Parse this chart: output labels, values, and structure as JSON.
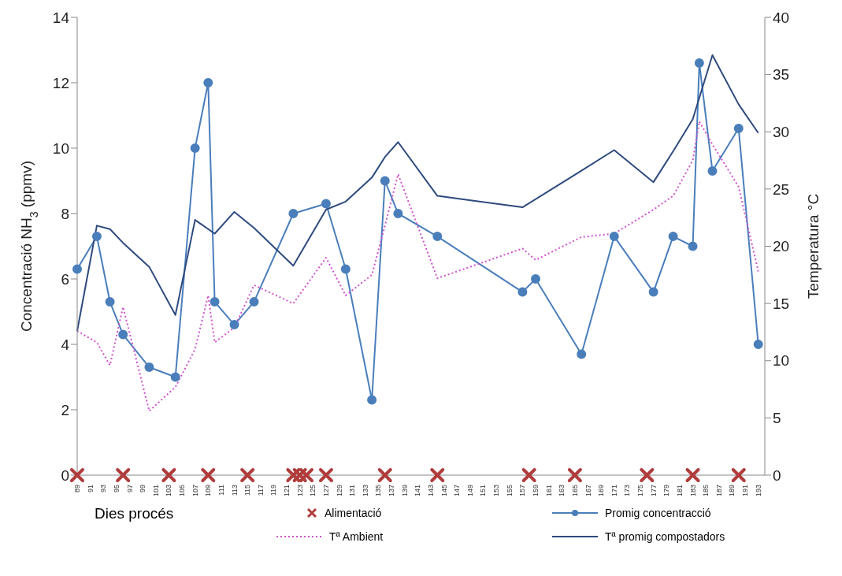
{
  "chart_data": {
    "type": "line",
    "xlabel": "Dies procés",
    "ylabel": "Concentració NH$_{3}$ (ppmv)",
    "y2label": "Temperatura °C",
    "xlim": [
      89,
      194
    ],
    "xticks": [
      89,
      91,
      93,
      95,
      97,
      99,
      101,
      103,
      105,
      107,
      109,
      111,
      113,
      115,
      117,
      119,
      121,
      123,
      125,
      127,
      129,
      131,
      133,
      135,
      137,
      139,
      141,
      143,
      145,
      147,
      149,
      151,
      153,
      155,
      157,
      159,
      161,
      163,
      165,
      167,
      169,
      171,
      173,
      175,
      177,
      179,
      181,
      183,
      185,
      187,
      189,
      191,
      193
    ],
    "ylim": [
      0,
      14
    ],
    "yticks": [
      0,
      2,
      4,
      6,
      8,
      10,
      12,
      14
    ],
    "y2lim": [
      0,
      40
    ],
    "y2ticks": [
      0,
      5,
      10,
      15,
      20,
      25,
      30,
      35,
      40
    ],
    "legend": "bottom",
    "series": [
      {
        "name": "Alimentació",
        "type": "scatter",
        "marker": "cross",
        "color": "#b03c3c",
        "x": [
          89,
          96,
          103,
          109,
          115,
          122,
          123,
          124,
          127,
          136,
          144,
          158,
          165,
          176,
          183,
          190
        ],
        "values": [
          0,
          0,
          0,
          0,
          0,
          0,
          0,
          0,
          0,
          0,
          0,
          0,
          0,
          0,
          0,
          0
        ]
      },
      {
        "name": "Promig concentracció",
        "marker": "circle",
        "color": "#4a7ebb",
        "x": [
          89,
          92,
          94,
          96,
          100,
          104,
          107,
          109,
          110,
          113,
          116,
          122,
          127,
          130,
          134,
          136,
          138,
          144,
          157,
          159,
          166,
          171,
          177,
          180,
          183,
          184,
          186,
          190,
          193
        ],
        "values": [
          6.3,
          7.3,
          5.3,
          4.3,
          3.3,
          3.0,
          10.0,
          12.0,
          5.3,
          4.6,
          5.3,
          8.0,
          8.3,
          6.3,
          2.3,
          9.0,
          8.0,
          7.3,
          5.6,
          6.0,
          3.7,
          7.3,
          5.6,
          7.3,
          7.0,
          12.6,
          9.3,
          10.6,
          4.0
        ]
      },
      {
        "name": "Tª Ambient",
        "marker": "none",
        "line_style": "dotted",
        "axis": "y2",
        "color": "#d050d0",
        "x": [
          89,
          92,
          94,
          96,
          100,
          104,
          107,
          109,
          110,
          113,
          116,
          122,
          127,
          130,
          134,
          136,
          138,
          144,
          157,
          159,
          166,
          171,
          177,
          180,
          183,
          184,
          186,
          190,
          193
        ],
        "values": [
          12.6,
          11.6,
          9.6,
          14.7,
          5.6,
          7.7,
          11.0,
          15.7,
          11.6,
          12.9,
          16.6,
          15.0,
          19.0,
          15.7,
          17.5,
          21.8,
          26.3,
          17.2,
          19.8,
          18.8,
          20.8,
          21.1,
          23.2,
          24.4,
          27.5,
          30.9,
          28.9,
          25.2,
          17.8
        ]
      },
      {
        "name": "Tª promig compostadors",
        "marker": "none",
        "line_style": "solid",
        "axis": "y2",
        "color": "#2e4a7d",
        "x": [
          89,
          92,
          94,
          96,
          100,
          104,
          107,
          110,
          113,
          116,
          122,
          127,
          130,
          134,
          136,
          138,
          144,
          157,
          166,
          171,
          177,
          180,
          183,
          186,
          190,
          193
        ],
        "values": [
          12.6,
          21.8,
          21.5,
          20.3,
          18.2,
          14.0,
          22.3,
          21.1,
          23.0,
          21.6,
          18.3,
          23.2,
          23.9,
          26.0,
          27.8,
          29.1,
          24.4,
          23.4,
          26.6,
          28.4,
          25.6,
          28.3,
          31.1,
          36.7,
          32.4,
          29.9
        ]
      }
    ]
  }
}
